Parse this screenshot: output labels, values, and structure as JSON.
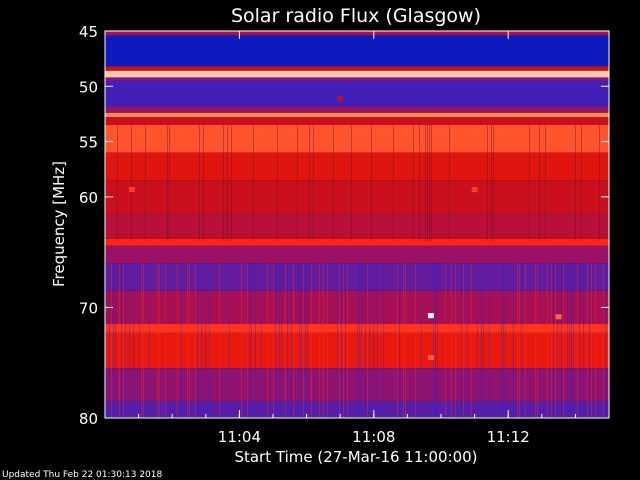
{
  "chart_data": {
    "type": "heatmap",
    "title": "Solar radio Flux (Glasgow)",
    "xlabel": "Start Time (27-Mar-16 11:00:00)",
    "ylabel": "Frequency [MHz]",
    "x_unit": "minutes after 11:00:00",
    "xlim": [
      0,
      15
    ],
    "x_ticks": [
      {
        "value": 4,
        "label": "11:04"
      },
      {
        "value": 8,
        "label": "11:08"
      },
      {
        "value": 12,
        "label": "11:12"
      }
    ],
    "ylim": [
      45,
      80
    ],
    "y_reversed": true,
    "y_ticks": [
      {
        "value": 45,
        "label": "45"
      },
      {
        "value": 50,
        "label": "50"
      },
      {
        "value": 55,
        "label": "55"
      },
      {
        "value": 60,
        "label": "60"
      },
      {
        "value": 70,
        "label": "70"
      },
      {
        "value": 80,
        "label": "80"
      }
    ],
    "colormap": [
      "#000060",
      "#1020d0",
      "#5020b0",
      "#a01060",
      "#d01010",
      "#ff2010",
      "#ff9050",
      "#ffffff"
    ],
    "frequency_bands": [
      {
        "from": 45.0,
        "to": 45.4,
        "intensity": 0.45
      },
      {
        "from": 45.4,
        "to": 48.2,
        "intensity": 0.12
      },
      {
        "from": 48.2,
        "to": 48.6,
        "intensity": 0.55
      },
      {
        "from": 48.6,
        "to": 49.2,
        "intensity": 0.93
      },
      {
        "from": 49.2,
        "to": 49.6,
        "intensity": 0.35
      },
      {
        "from": 49.6,
        "to": 51.8,
        "intensity": 0.25
      },
      {
        "from": 51.8,
        "to": 52.4,
        "intensity": 0.4
      },
      {
        "from": 52.4,
        "to": 52.8,
        "intensity": 0.85
      },
      {
        "from": 52.8,
        "to": 53.5,
        "intensity": 0.55
      },
      {
        "from": 53.5,
        "to": 56.0,
        "intensity": 0.78
      },
      {
        "from": 56.0,
        "to": 58.5,
        "intensity": 0.62
      },
      {
        "from": 58.5,
        "to": 61.5,
        "intensity": 0.55
      },
      {
        "from": 61.5,
        "to": 63.8,
        "intensity": 0.5
      },
      {
        "from": 63.8,
        "to": 64.4,
        "intensity": 0.72
      },
      {
        "from": 64.4,
        "to": 66.0,
        "intensity": 0.42
      },
      {
        "from": 66.0,
        "to": 68.5,
        "intensity": 0.32
      },
      {
        "from": 68.5,
        "to": 71.5,
        "intensity": 0.45
      },
      {
        "from": 71.5,
        "to": 72.3,
        "intensity": 0.74
      },
      {
        "from": 72.3,
        "to": 75.5,
        "intensity": 0.65
      },
      {
        "from": 75.5,
        "to": 78.5,
        "intensity": 0.4
      },
      {
        "from": 78.5,
        "to": 80.0,
        "intensity": 0.3
      }
    ],
    "bursts": [
      {
        "time": 0.8,
        "freq": 59.3,
        "intensity": 0.75
      },
      {
        "time": 11.0,
        "freq": 59.3,
        "intensity": 0.75
      },
      {
        "time": 9.7,
        "freq": 70.7,
        "intensity": 1.0
      },
      {
        "time": 9.7,
        "freq": 74.5,
        "intensity": 0.8
      },
      {
        "time": 13.5,
        "freq": 70.8,
        "intensity": 0.8
      },
      {
        "time": 7.0,
        "freq": 51.1,
        "intensity": 0.5
      }
    ]
  },
  "footer": {
    "updated": "Updated Thu Feb 22 01:30:13 2018"
  }
}
